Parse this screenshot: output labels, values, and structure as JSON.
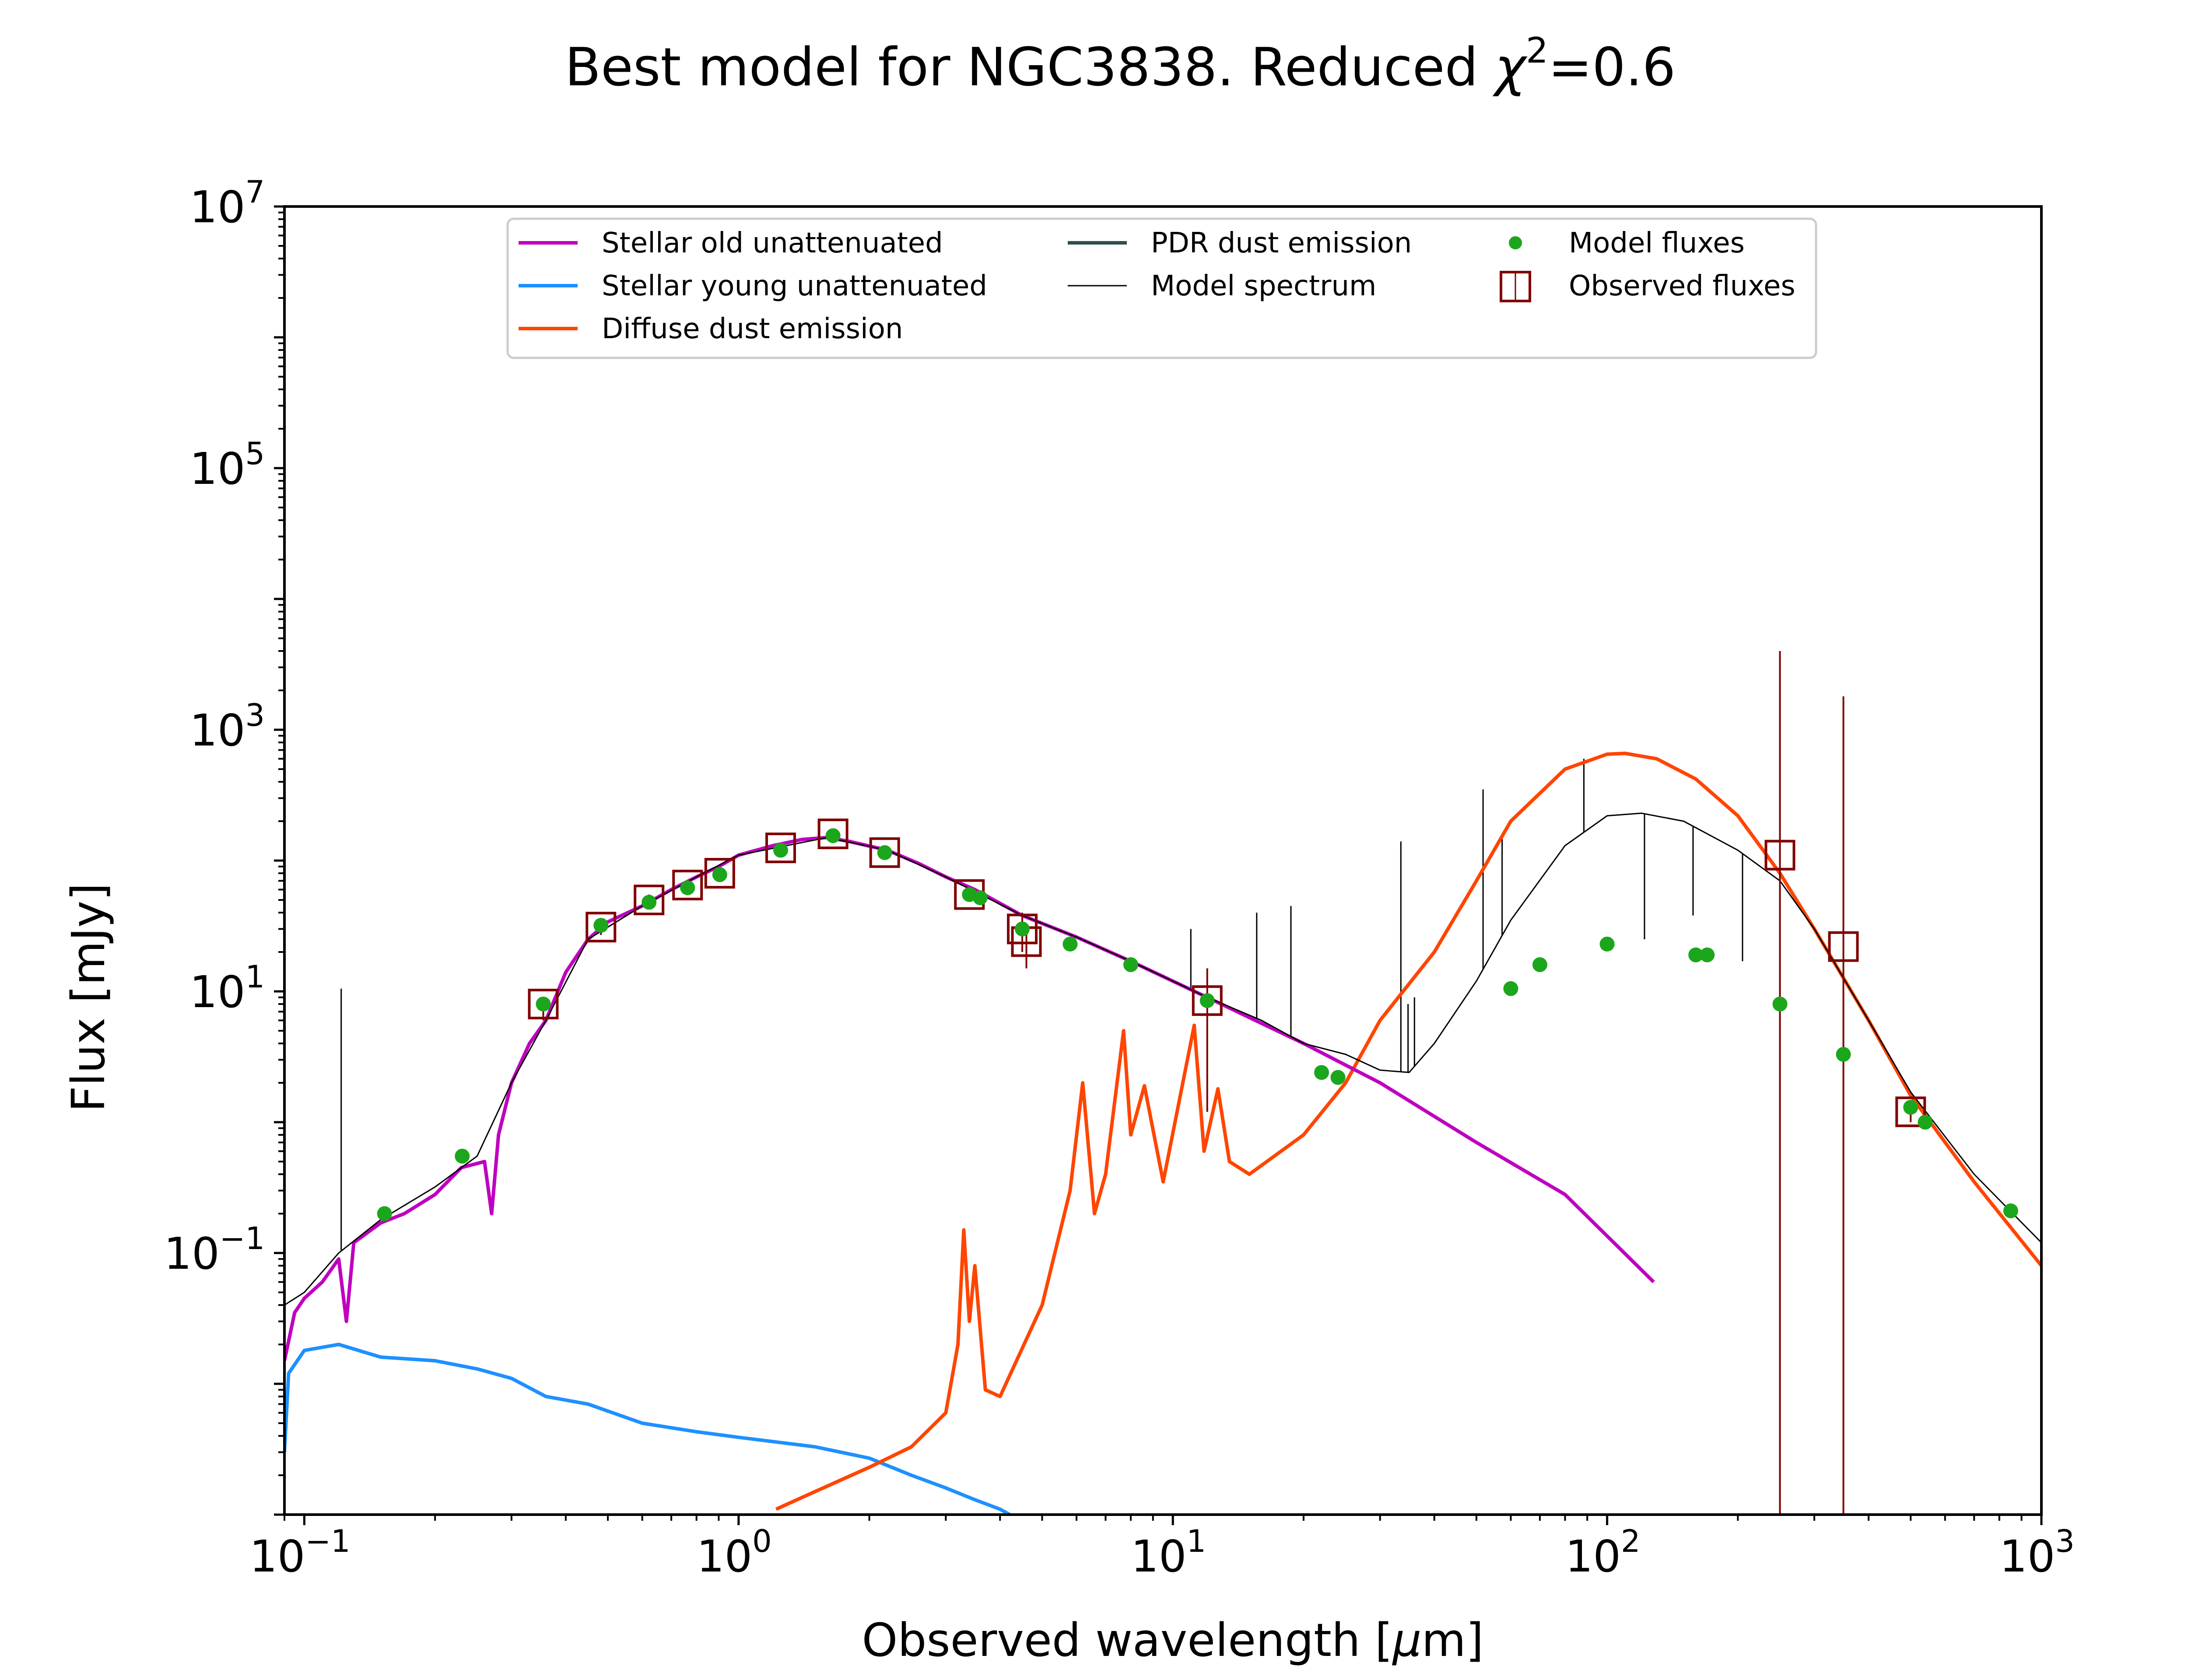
{
  "chart_data": {
    "type": "line",
    "title": "Best model for NGC3838. Reduced χ²=0.6",
    "title_main": "Best model for NGC3838. Reduced ",
    "title_chi": "χ",
    "title_sup": "2",
    "title_tail": "=0.6",
    "xlabel": "Observed wavelength [μm]",
    "xlabel_main": "Observed wavelength [",
    "xlabel_mu": "μ",
    "xlabel_tail": "m]",
    "ylabel": "Flux [mJy]",
    "xscale": "log",
    "yscale": "log",
    "xlim": [
      0.09,
      1000
    ],
    "ylim": [
      0.001,
      10000000
    ],
    "grid": false,
    "legend_placement": "top-center",
    "x_ticks": [
      {
        "base": "10",
        "exp": "−1",
        "value": 0.1
      },
      {
        "base": "10",
        "exp": "0",
        "value": 1
      },
      {
        "base": "10",
        "exp": "1",
        "value": 10
      },
      {
        "base": "10",
        "exp": "2",
        "value": 100
      },
      {
        "base": "10",
        "exp": "3",
        "value": 1000
      }
    ],
    "y_ticks": [
      {
        "base": "10",
        "exp": "−1",
        "value": 0.1
      },
      {
        "base": "10",
        "exp": "1",
        "value": 10
      },
      {
        "base": "10",
        "exp": "3",
        "value": 1000
      },
      {
        "base": "10",
        "exp": "5",
        "value": 100000
      },
      {
        "base": "10",
        "exp": "7",
        "value": 10000000
      }
    ],
    "legend": [
      {
        "label": "Stellar old unattenuated",
        "color": "#bf00bf",
        "marker": "line"
      },
      {
        "label": "Stellar young unattenuated",
        "color": "#1e90ff",
        "marker": "line"
      },
      {
        "label": "Diffuse dust emission",
        "color": "#ff4500",
        "marker": "line"
      },
      {
        "label": "PDR dust emission",
        "color": "#2f4f4f",
        "marker": "line"
      },
      {
        "label": "Model spectrum",
        "color": "#000000",
        "marker": "thin-line"
      },
      {
        "label": "Model fluxes",
        "color": "#1ca61c",
        "marker": "dot"
      },
      {
        "label": "Observed fluxes",
        "color": "#800000",
        "marker": "square"
      }
    ],
    "series": [
      {
        "name": "Stellar old unattenuated",
        "color": "#bf00bf",
        "points": [
          [
            0.09,
            0.015
          ],
          [
            0.095,
            0.035
          ],
          [
            0.1,
            0.045
          ],
          [
            0.11,
            0.06
          ],
          [
            0.12,
            0.09
          ],
          [
            0.125,
            0.03
          ],
          [
            0.13,
            0.12
          ],
          [
            0.15,
            0.17
          ],
          [
            0.17,
            0.2
          ],
          [
            0.2,
            0.28
          ],
          [
            0.23,
            0.45
          ],
          [
            0.26,
            0.5
          ],
          [
            0.27,
            0.2
          ],
          [
            0.28,
            0.8
          ],
          [
            0.3,
            2
          ],
          [
            0.33,
            4
          ],
          [
            0.36,
            6
          ],
          [
            0.4,
            14
          ],
          [
            0.45,
            25
          ],
          [
            0.5,
            34
          ],
          [
            0.6,
            45
          ],
          [
            0.7,
            60
          ],
          [
            0.8,
            75
          ],
          [
            0.9,
            90
          ],
          [
            1.0,
            110
          ],
          [
            1.2,
            130
          ],
          [
            1.4,
            145
          ],
          [
            1.6,
            150
          ],
          [
            1.8,
            140
          ],
          [
            2.2,
            120
          ],
          [
            2.6,
            95
          ],
          [
            3.0,
            75
          ],
          [
            3.5,
            60
          ],
          [
            4.5,
            38
          ],
          [
            6,
            26
          ],
          [
            8,
            17
          ],
          [
            12,
            9
          ],
          [
            20,
            4
          ],
          [
            30,
            2
          ],
          [
            50,
            0.7
          ],
          [
            80,
            0.28
          ],
          [
            128,
            0.06
          ]
        ]
      },
      {
        "name": "Stellar young unattenuated",
        "color": "#1e90ff",
        "points": [
          [
            0.09,
            0.003
          ],
          [
            0.092,
            0.012
          ],
          [
            0.1,
            0.018
          ],
          [
            0.12,
            0.02
          ],
          [
            0.15,
            0.016
          ],
          [
            0.2,
            0.015
          ],
          [
            0.25,
            0.013
          ],
          [
            0.3,
            0.011
          ],
          [
            0.36,
            0.008
          ],
          [
            0.45,
            0.007
          ],
          [
            0.6,
            0.005
          ],
          [
            0.8,
            0.0043
          ],
          [
            1.0,
            0.0039
          ],
          [
            1.5,
            0.0033
          ],
          [
            2.0,
            0.0027
          ],
          [
            2.5,
            0.002
          ],
          [
            3.0,
            0.0016
          ],
          [
            3.5,
            0.0013
          ],
          [
            4.0,
            0.0011
          ],
          [
            4.6,
            0.00085
          ]
        ]
      },
      {
        "name": "Diffuse dust emission",
        "color": "#ff4500",
        "points": [
          [
            1.22,
            0.0011
          ],
          [
            1.5,
            0.0015
          ],
          [
            2.0,
            0.0023
          ],
          [
            2.5,
            0.0033
          ],
          [
            3.0,
            0.006
          ],
          [
            3.2,
            0.02
          ],
          [
            3.3,
            0.15
          ],
          [
            3.4,
            0.03
          ],
          [
            3.5,
            0.08
          ],
          [
            3.7,
            0.009
          ],
          [
            4.0,
            0.008
          ],
          [
            5.0,
            0.04
          ],
          [
            5.8,
            0.3
          ],
          [
            6.2,
            2
          ],
          [
            6.6,
            0.2
          ],
          [
            7.0,
            0.4
          ],
          [
            7.7,
            5
          ],
          [
            8.0,
            0.8
          ],
          [
            8.6,
            1.9
          ],
          [
            9.5,
            0.35
          ],
          [
            11.2,
            5.5
          ],
          [
            11.8,
            0.6
          ],
          [
            12.7,
            1.8
          ],
          [
            13.5,
            0.5
          ],
          [
            15,
            0.4
          ],
          [
            20,
            0.8
          ],
          [
            25,
            2
          ],
          [
            30,
            6
          ],
          [
            40,
            20
          ],
          [
            50,
            70
          ],
          [
            60,
            200
          ],
          [
            80,
            500
          ],
          [
            100,
            650
          ],
          [
            110,
            660
          ],
          [
            130,
            600
          ],
          [
            160,
            420
          ],
          [
            200,
            220
          ],
          [
            250,
            80
          ],
          [
            300,
            30
          ],
          [
            400,
            6
          ],
          [
            500,
            1.6
          ],
          [
            700,
            0.35
          ],
          [
            1000,
            0.08
          ]
        ]
      },
      {
        "name": "Model spectrum",
        "color": "#000000",
        "points": [
          [
            0.09,
            0.04
          ],
          [
            0.1,
            0.05
          ],
          [
            0.12,
            0.1
          ],
          [
            0.15,
            0.18
          ],
          [
            0.2,
            0.32
          ],
          [
            0.25,
            0.55
          ],
          [
            0.3,
            2
          ],
          [
            0.36,
            6
          ],
          [
            0.45,
            25
          ],
          [
            0.6,
            45
          ],
          [
            0.8,
            75
          ],
          [
            1.0,
            110
          ],
          [
            1.6,
            150
          ],
          [
            2.2,
            120
          ],
          [
            3.0,
            75
          ],
          [
            4.5,
            38
          ],
          [
            6,
            26
          ],
          [
            8,
            17
          ],
          [
            12,
            9
          ],
          [
            16,
            6
          ],
          [
            20,
            4
          ],
          [
            25,
            3.3
          ],
          [
            30,
            2.5
          ],
          [
            35,
            2.4
          ],
          [
            40,
            4
          ],
          [
            50,
            12
          ],
          [
            60,
            35
          ],
          [
            80,
            130
          ],
          [
            100,
            220
          ],
          [
            120,
            230
          ],
          [
            150,
            200
          ],
          [
            200,
            120
          ],
          [
            250,
            70
          ],
          [
            300,
            30
          ],
          [
            400,
            6
          ],
          [
            500,
            1.7
          ],
          [
            700,
            0.4
          ],
          [
            1000,
            0.12
          ]
        ]
      }
    ],
    "emission_lines": [
      {
        "x": 0.1216,
        "peak": 10.5
      },
      {
        "x": 11.0,
        "peak": 30
      },
      {
        "x": 15.6,
        "peak": 40
      },
      {
        "x": 18.7,
        "peak": 45
      },
      {
        "x": 33.5,
        "peak": 140
      },
      {
        "x": 34.8,
        "peak": 8
      },
      {
        "x": 36.0,
        "peak": 9
      },
      {
        "x": 51.8,
        "peak": 350
      },
      {
        "x": 57.3,
        "peak": 150
      },
      {
        "x": 88.4,
        "peak": 600
      },
      {
        "x": 121.9,
        "peak": 25
      },
      {
        "x": 157.7,
        "peak": 38
      },
      {
        "x": 205,
        "peak": 17
      }
    ],
    "model_fluxes": [
      [
        0.153,
        0.2
      ],
      [
        0.231,
        0.55
      ],
      [
        0.355,
        8
      ],
      [
        0.482,
        32
      ],
      [
        0.622,
        48
      ],
      [
        0.763,
        62
      ],
      [
        0.905,
        78
      ],
      [
        1.25,
        120
      ],
      [
        1.65,
        155
      ],
      [
        2.17,
        115
      ],
      [
        3.4,
        55
      ],
      [
        3.6,
        52
      ],
      [
        4.5,
        30
      ],
      [
        5.8,
        23
      ],
      [
        8.0,
        16
      ],
      [
        12.0,
        8.5
      ],
      [
        22.0,
        2.4
      ],
      [
        24.0,
        2.2
      ],
      [
        60,
        10.5
      ],
      [
        70,
        16
      ],
      [
        100,
        23
      ],
      [
        160,
        19
      ],
      [
        170,
        19
      ],
      [
        250,
        8
      ],
      [
        350,
        3.3
      ],
      [
        500,
        1.3
      ],
      [
        540,
        1
      ],
      [
        850,
        0.21
      ]
    ],
    "observed_fluxes": [
      {
        "x": 0.355,
        "y": 8,
        "err": [
          6,
          9
        ]
      },
      {
        "x": 0.482,
        "y": 31,
        "err": [
          27,
          35
        ]
      },
      {
        "x": 0.622,
        "y": 50,
        "err": [
          45,
          55
        ]
      },
      {
        "x": 0.763,
        "y": 65,
        "err": [
          60,
          70
        ]
      },
      {
        "x": 0.905,
        "y": 80,
        "err": [
          74,
          86
        ]
      },
      {
        "x": 1.25,
        "y": 125,
        "err": [
          115,
          135
        ]
      },
      {
        "x": 1.65,
        "y": 160,
        "err": [
          148,
          172
        ]
      },
      {
        "x": 2.17,
        "y": 115,
        "err": [
          106,
          124
        ]
      },
      {
        "x": 3.4,
        "y": 55,
        "err": [
          50,
          60
        ]
      },
      {
        "x": 4.5,
        "y": 30,
        "err": [
          20,
          40
        ]
      },
      {
        "x": 4.6,
        "y": 24,
        "err": [
          15,
          30
        ]
      },
      {
        "x": 12.0,
        "y": 8.5,
        "err": [
          1.2,
          15
        ]
      },
      {
        "x": 250,
        "y": 110,
        "err": [
          0.001,
          4000
        ]
      },
      {
        "x": 350,
        "y": 22,
        "err": [
          0.001,
          1800
        ]
      },
      {
        "x": 500,
        "y": 1.2,
        "err": [
          1.0,
          1.4
        ]
      }
    ]
  }
}
